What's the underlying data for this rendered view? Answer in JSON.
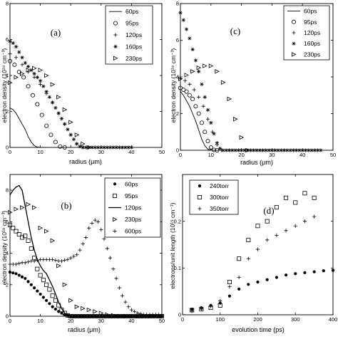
{
  "chart_data": [
    {
      "type": "scatter",
      "panel_label": "(a)",
      "xlabel": "radius  (μm)",
      "ylabel": "electron density  (10¹⁹ cm⁻³)",
      "xlim": [
        0,
        50
      ],
      "ylim": [
        0,
        8
      ],
      "xticks": [
        0,
        10,
        20,
        30,
        40,
        50
      ],
      "yticks": [
        0,
        2,
        4,
        6,
        8
      ],
      "legend_position": "top-right",
      "series": [
        {
          "name": "60ps",
          "marker": "line",
          "x": [
            0,
            1,
            2,
            3,
            4,
            5,
            6,
            7,
            8,
            9,
            10,
            11,
            12
          ],
          "y": [
            2.2,
            2.1,
            1.9,
            1.6,
            1.3,
            1.0,
            0.6,
            0.3,
            0.1,
            0.02,
            0,
            0,
            0
          ]
        },
        {
          "name": "95ps",
          "marker": "circle",
          "x": [
            0,
            1.5,
            3,
            4.5,
            6,
            7.5,
            9,
            10.5,
            12,
            13.5,
            15,
            16.5,
            18
          ],
          "y": [
            4.8,
            4.6,
            4.2,
            3.9,
            3.4,
            2.9,
            2.4,
            1.8,
            1.2,
            0.7,
            0.3,
            0.05,
            0
          ]
        },
        {
          "name": "120ps",
          "marker": "plus",
          "x": [
            0,
            2,
            4,
            6,
            8,
            10,
            12,
            14,
            16,
            18,
            20,
            22,
            24
          ],
          "y": [
            5.2,
            5.0,
            4.6,
            4.2,
            3.9,
            3.5,
            3.0,
            2.5,
            1.9,
            1.3,
            0.7,
            0.2,
            0
          ]
        },
        {
          "name": "160ps",
          "marker": "star",
          "x": [
            0,
            1,
            2,
            3,
            4,
            5,
            6,
            7,
            8,
            9,
            10,
            11,
            12,
            13,
            14,
            15,
            16,
            17,
            18,
            19,
            20,
            21,
            22,
            23,
            24,
            25,
            26,
            27,
            28,
            29,
            30,
            31,
            32,
            33,
            34,
            35,
            36,
            37,
            38,
            39,
            40
          ],
          "y": [
            5.9,
            5.8,
            5.6,
            5.3,
            5.0,
            4.7,
            4.5,
            4.3,
            4.1,
            3.9,
            3.7,
            3.4,
            3.1,
            2.8,
            2.5,
            2.2,
            1.9,
            1.6,
            1.3,
            1.0,
            0.7,
            0.45,
            0.2,
            0.05,
            0,
            0,
            0,
            0,
            0,
            0,
            0,
            0,
            0,
            0,
            0,
            0,
            0,
            0,
            0,
            0,
            0
          ]
        },
        {
          "name": "230ps",
          "marker": "triangle",
          "x": [
            0,
            2,
            4,
            6,
            8,
            10,
            12,
            14,
            16,
            18,
            20,
            22,
            24,
            26
          ],
          "y": [
            3.6,
            3.9,
            4.1,
            4.3,
            4.4,
            4.3,
            4.0,
            3.5,
            2.8,
            2.1,
            1.4,
            0.7,
            0.2,
            0
          ]
        }
      ]
    },
    {
      "type": "scatter",
      "panel_label": "(c)",
      "xlabel": "radius  (μm)",
      "ylabel": "electron density  (10¹⁹ cm⁻³)",
      "xlim": [
        0,
        50
      ],
      "ylim": [
        0,
        8
      ],
      "xticks": [
        0,
        10,
        20,
        30,
        40,
        50
      ],
      "yticks": [
        0,
        2,
        4,
        6,
        8
      ],
      "legend_position": "top-right",
      "series": [
        {
          "name": "60ps",
          "marker": "line",
          "x": [
            0,
            1,
            2,
            3,
            4,
            5,
            6,
            7,
            8,
            9,
            10,
            11
          ],
          "y": [
            3.2,
            3.0,
            2.7,
            2.4,
            2.0,
            1.6,
            1.1,
            0.6,
            0.25,
            0.05,
            0,
            0
          ]
        },
        {
          "name": "95ps",
          "marker": "circle",
          "x": [
            0,
            1,
            2,
            3,
            4,
            5,
            6,
            7,
            8,
            9,
            10,
            11,
            12
          ],
          "y": [
            3.4,
            3.3,
            3.2,
            3.0,
            2.8,
            2.4,
            2.0,
            1.5,
            1.0,
            0.5,
            0.15,
            0.02,
            0
          ]
        },
        {
          "name": "120ps",
          "marker": "plus",
          "x": [
            0,
            1.5,
            3,
            4.5,
            6,
            7.5,
            9,
            10.5,
            12,
            13.5
          ],
          "y": [
            3.9,
            3.8,
            3.6,
            3.3,
            2.9,
            2.4,
            1.7,
            1.0,
            0.3,
            0
          ]
        },
        {
          "name": "160ps",
          "marker": "star",
          "x": [
            0,
            1,
            2,
            3,
            4,
            5,
            6,
            7,
            8,
            9,
            10,
            11,
            12,
            13,
            14,
            15,
            16,
            17,
            18,
            19,
            20,
            21,
            22,
            23,
            24,
            25,
            26,
            27,
            28,
            29,
            30,
            31,
            32,
            33,
            34,
            35,
            36,
            37,
            38,
            39,
            40,
            41,
            42,
            43,
            44,
            45,
            46
          ],
          "y": [
            7.5,
            7.1,
            6.6,
            6.1,
            5.5,
            4.9,
            4.3,
            3.6,
            2.9,
            2.2,
            1.5,
            0.9,
            0.4,
            0.1,
            0,
            0,
            0,
            0,
            0,
            0,
            0,
            0,
            0,
            0,
            0,
            0,
            0,
            0,
            0,
            0,
            0,
            0,
            0,
            0,
            0,
            0,
            0,
            0,
            0,
            0,
            0,
            0,
            0,
            0,
            0,
            0,
            0
          ]
        },
        {
          "name": "230ps",
          "marker": "triangle",
          "x": [
            0,
            2,
            4,
            6,
            8,
            10,
            12,
            14,
            16,
            18,
            20,
            22
          ],
          "y": [
            3.9,
            4.1,
            4.3,
            4.5,
            4.6,
            4.6,
            4.3,
            3.7,
            2.8,
            1.7,
            0.7,
            0
          ]
        }
      ]
    },
    {
      "type": "scatter",
      "panel_label": "(b)",
      "xlabel": "radius  (μm)",
      "ylabel": "electron density  (10¹⁹ cm⁻³)",
      "xlim": [
        0,
        50
      ],
      "ylim": [
        0,
        9
      ],
      "xticks": [
        0,
        10,
        20,
        30,
        40,
        50
      ],
      "yticks": [
        0,
        2,
        4,
        6,
        8
      ],
      "legend_position": "top-right",
      "series": [
        {
          "name": "60ps",
          "marker": "dot",
          "x": [
            0,
            1,
            2,
            3,
            4,
            5,
            6,
            7,
            8,
            9,
            10,
            11,
            12,
            13,
            14,
            15,
            16,
            17,
            18,
            19,
            20,
            21,
            22,
            23,
            24,
            25,
            26,
            27,
            28,
            29,
            30,
            31,
            32,
            33,
            34,
            35,
            36,
            37,
            38,
            39,
            40,
            41,
            42,
            43,
            44,
            45,
            46,
            47,
            48,
            49,
            50
          ],
          "y": [
            2.8,
            2.75,
            2.7,
            2.6,
            2.5,
            2.4,
            2.2,
            2.0,
            1.8,
            1.6,
            1.4,
            1.2,
            1.0,
            0.8,
            0.6,
            0.45,
            0.3,
            0.2,
            0.1,
            0.05,
            0,
            0,
            0,
            0,
            0,
            0,
            0,
            0,
            0,
            0,
            0,
            0,
            0,
            0,
            0,
            0,
            0,
            0,
            0,
            0,
            0,
            0,
            0,
            0,
            0,
            0,
            0,
            0,
            0,
            0,
            0
          ]
        },
        {
          "name": "95ps",
          "marker": "square",
          "x": [
            0,
            1,
            2,
            3,
            4,
            5,
            6,
            7,
            8,
            9,
            10,
            11,
            12,
            13,
            14,
            15,
            16,
            17,
            18,
            19,
            20,
            21,
            22,
            23,
            24,
            25,
            26,
            27,
            28,
            29,
            30,
            31,
            32,
            33,
            34,
            35,
            36,
            37,
            38,
            39,
            40,
            41,
            42,
            43,
            44,
            45,
            46,
            47,
            48,
            49,
            50
          ],
          "y": [
            5.8,
            5.6,
            5.4,
            5.2,
            5.0,
            5.1,
            4.8,
            4.3,
            3.7,
            3.0,
            2.6,
            2.3,
            2.0,
            1.7,
            1.3,
            1.0,
            0.7,
            0.4,
            0.2,
            0.05,
            0,
            0,
            0,
            0,
            0,
            0,
            0,
            0,
            0,
            0,
            0,
            0,
            0,
            0,
            0,
            0,
            0,
            0,
            0,
            0,
            0,
            0,
            0,
            0,
            0,
            0,
            0,
            0,
            0,
            0,
            0
          ]
        },
        {
          "name": "120ps",
          "marker": "line",
          "x": [
            0,
            1,
            2,
            3,
            4,
            5,
            6,
            7,
            8,
            9,
            10,
            11,
            12,
            13,
            14,
            15,
            16,
            17,
            18,
            19,
            20,
            21,
            22
          ],
          "y": [
            7.7,
            8.0,
            8.2,
            8.3,
            8.0,
            7.0,
            6.0,
            5.0,
            4.2,
            3.6,
            3.2,
            2.9,
            2.7,
            2.3,
            1.9,
            1.4,
            0.9,
            0.5,
            0.2,
            0.05,
            0,
            0,
            0
          ]
        },
        {
          "name": "230ps",
          "marker": "triangle",
          "x": [
            0,
            2,
            4,
            6,
            8,
            10,
            12,
            14,
            16,
            18,
            20,
            22,
            24,
            26,
            28,
            30,
            32,
            34,
            36,
            38,
            40,
            42,
            44,
            46,
            48,
            50
          ],
          "y": [
            6.6,
            6.8,
            6.9,
            7.1,
            6.9,
            5.6,
            5.4,
            4.8,
            3.2,
            2.0,
            1.0,
            0.6,
            0.5,
            0.4,
            0.3,
            0.2,
            0.1,
            0.05,
            0,
            0,
            0,
            0,
            0,
            0,
            0,
            0
          ]
        },
        {
          "name": "600ps",
          "marker": "plus",
          "x": [
            0,
            1,
            2,
            3,
            4,
            5,
            6,
            7,
            8,
            9,
            10,
            11,
            12,
            13,
            14,
            15,
            16,
            17,
            18,
            19,
            20,
            21,
            22,
            23,
            24,
            25,
            26,
            27,
            28,
            29,
            30,
            31,
            32,
            33,
            34,
            35,
            36,
            37,
            38,
            39,
            40,
            41,
            42,
            43,
            44,
            45,
            46,
            47,
            48,
            49,
            50
          ],
          "y": [
            3.3,
            3.3,
            3.3,
            3.35,
            3.4,
            3.4,
            3.45,
            3.5,
            3.5,
            3.55,
            3.6,
            3.6,
            3.6,
            3.6,
            3.6,
            3.55,
            3.5,
            3.5,
            3.55,
            3.6,
            3.7,
            3.8,
            3.9,
            4.2,
            4.6,
            5.0,
            5.6,
            5.9,
            6.1,
            6.0,
            5.5,
            4.9,
            4.3,
            3.7,
            3.0,
            2.4,
            1.8,
            1.3,
            0.9,
            0.6,
            0.4,
            0.3,
            0.2,
            0.15,
            0.1,
            0.1,
            0.1,
            0.1,
            0.1,
            0.1,
            0.1
          ]
        }
      ]
    },
    {
      "type": "scatter",
      "panel_label": "(d)",
      "xlabel": "evolution time  (ps)",
      "ylabel": "electrons/unit length  (10¹⁵ cm⁻¹)",
      "xlim": [
        0,
        400
      ],
      "ylim": [
        0,
        0.3
      ],
      "xticks": [
        0,
        100,
        200,
        300,
        400
      ],
      "yticks": [
        0,
        0.1,
        0.2
      ],
      "legend_position": "top-left",
      "series": [
        {
          "name": "240torr",
          "marker": "dot",
          "x": [
            25,
            50,
            75,
            100,
            125,
            150,
            175,
            200,
            225,
            250,
            275,
            300,
            325,
            350,
            375,
            400
          ],
          "y": [
            0.012,
            0.015,
            0.02,
            0.025,
            0.04,
            0.055,
            0.065,
            0.07,
            0.075,
            0.08,
            0.085,
            0.088,
            0.09,
            0.092,
            0.094,
            0.095
          ]
        },
        {
          "name": "300torr",
          "marker": "square",
          "x": [
            25,
            50,
            75,
            100,
            125,
            150,
            175,
            200,
            225,
            250,
            275,
            300,
            325,
            350
          ],
          "y": [
            0.01,
            0.012,
            0.015,
            0.02,
            0.07,
            0.12,
            0.16,
            0.19,
            0.2,
            0.23,
            0.25,
            0.24,
            0.26,
            0.25
          ]
        },
        {
          "name": "350torr",
          "marker": "plus",
          "x": [
            25,
            50,
            75,
            100,
            125,
            150,
            175,
            200,
            225,
            250,
            275,
            300,
            325,
            350
          ],
          "y": [
            0.008,
            0.012,
            0.018,
            0.03,
            0.06,
            0.08,
            0.12,
            0.14,
            0.16,
            0.17,
            0.18,
            0.19,
            0.2,
            0.21
          ]
        }
      ]
    }
  ]
}
